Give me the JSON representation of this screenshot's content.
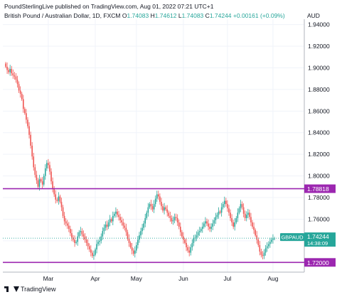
{
  "header": {
    "publisher": "PoundSterlingLive published on TradingView.com, Aug 01, 2022 07:21 UTC+1"
  },
  "instrument": {
    "name": "British Pound / Australian Dollar, 1D, FXCM",
    "o_label": "O",
    "o": "1.74083",
    "h_label": "H",
    "h": "1.74612",
    "l_label": "L",
    "l": "1.74083",
    "c_label": "C",
    "c": "1.74244",
    "change": "+0.00161 (+0.09%)"
  },
  "currency_label": "AUD",
  "footer": {
    "brand": "TradingView"
  },
  "colors": {
    "up": "#26a69a",
    "down": "#ef5350",
    "level": "#9c27b0",
    "last": "#26a69a"
  },
  "chart_data": {
    "type": "candlestick",
    "symbol": "GBPAUD",
    "ylim": [
      1.711,
      1.945
    ],
    "yticks": [
      1.74,
      1.76,
      1.78,
      1.8,
      1.82,
      1.84,
      1.86,
      1.88,
      1.9,
      1.92,
      1.94
    ],
    "ytick_labels": [
      "1.74000",
      "1.76000",
      "1.78000",
      "1.80000",
      "1.82000",
      "1.84000",
      "1.86000",
      "1.88000",
      "1.90000",
      "1.92000",
      "1.94000"
    ],
    "xticks": [
      {
        "label": "Mar",
        "index": 29
      },
      {
        "label": "Apr",
        "index": 61
      },
      {
        "label": "May",
        "index": 89
      },
      {
        "label": "Jun",
        "index": 121
      },
      {
        "label": "Jul",
        "index": 151
      },
      {
        "label": "Aug",
        "index": 182
      }
    ],
    "levels": [
      {
        "value": 1.78818,
        "label": "1.78818"
      },
      {
        "value": 1.72,
        "label": "1.72000"
      }
    ],
    "last_price": {
      "value": 1.74244,
      "label": "1.74244",
      "symbol_label": "GBPAUD",
      "countdown": "14:38:09"
    },
    "closes": [
      1.901,
      1.898,
      1.896,
      1.899,
      1.895,
      1.893,
      1.892,
      1.889,
      1.885,
      1.879,
      1.876,
      1.871,
      1.862,
      1.858,
      1.852,
      1.846,
      1.838,
      1.828,
      1.818,
      1.808,
      1.801,
      1.796,
      1.79,
      1.797,
      1.795,
      1.792,
      1.8,
      1.807,
      1.812,
      1.81,
      1.804,
      1.795,
      1.788,
      1.783,
      1.778,
      1.777,
      1.781,
      1.776,
      1.771,
      1.763,
      1.758,
      1.756,
      1.754,
      1.751,
      1.747,
      1.743,
      1.741,
      1.738,
      1.739,
      1.744,
      1.748,
      1.749,
      1.746,
      1.744,
      1.741,
      1.738,
      1.735,
      1.732,
      1.729,
      1.726,
      1.727,
      1.732,
      1.737,
      1.739,
      1.74,
      1.744,
      1.749,
      1.752,
      1.755,
      1.753,
      1.757,
      1.76,
      1.758,
      1.763,
      1.765,
      1.767,
      1.764,
      1.762,
      1.759,
      1.757,
      1.754,
      1.752,
      1.748,
      1.742,
      1.738,
      1.734,
      1.731,
      1.728,
      1.731,
      1.736,
      1.741,
      1.745,
      1.749,
      1.752,
      1.756,
      1.761,
      1.766,
      1.771,
      1.774,
      1.772,
      1.769,
      1.774,
      1.779,
      1.783,
      1.781,
      1.776,
      1.772,
      1.768,
      1.771,
      1.769,
      1.766,
      1.763,
      1.761,
      1.758,
      1.759,
      1.762,
      1.761,
      1.757,
      1.753,
      1.748,
      1.744,
      1.741,
      1.738,
      1.734,
      1.731,
      1.729,
      1.734,
      1.738,
      1.742,
      1.743,
      1.745,
      1.748,
      1.749,
      1.751,
      1.753,
      1.756,
      1.758,
      1.756,
      1.753,
      1.751,
      1.753,
      1.756,
      1.759,
      1.762,
      1.764,
      1.767,
      1.766,
      1.771,
      1.774,
      1.777,
      1.774,
      1.77,
      1.766,
      1.761,
      1.757,
      1.753,
      1.757,
      1.761,
      1.766,
      1.77,
      1.774,
      1.771,
      1.765,
      1.761,
      1.764,
      1.766,
      1.762,
      1.757,
      1.753,
      1.75,
      1.745,
      1.741,
      1.736,
      1.73,
      1.727,
      1.726,
      1.729,
      1.733,
      1.735,
      1.737,
      1.739,
      1.741,
      1.742,
      1.742
    ]
  }
}
